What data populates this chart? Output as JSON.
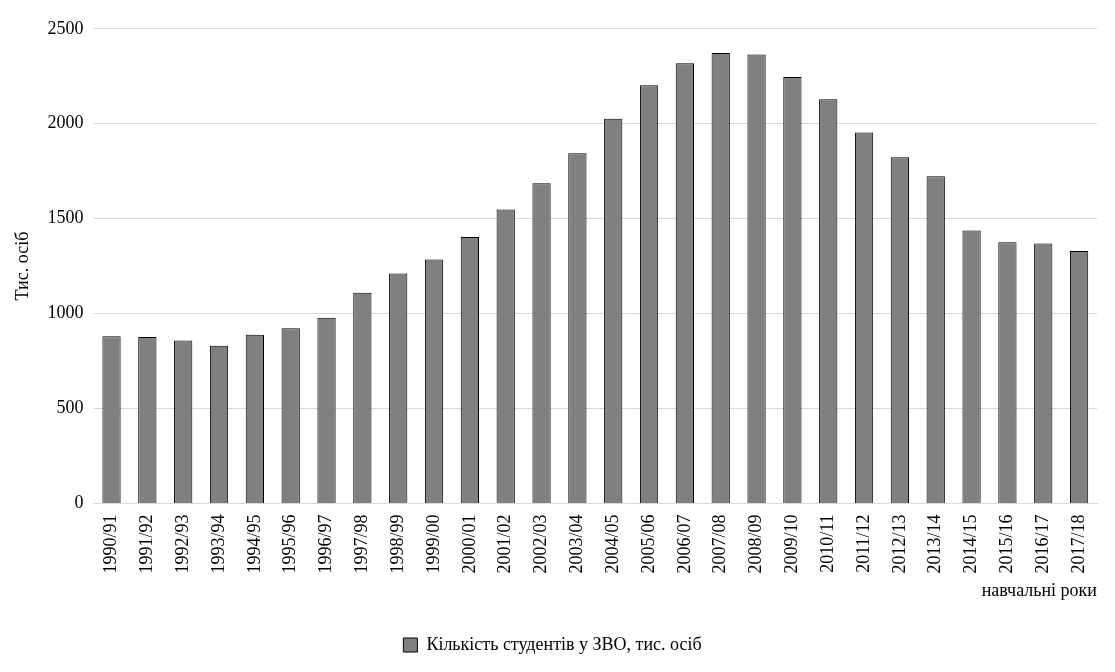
{
  "chart_data": {
    "type": "bar",
    "ylabel": "Тис. осіб",
    "xlabel": "навчальні роки",
    "categories": [
      "1990/91",
      "1991/92",
      "1992/93",
      "1993/94",
      "1994/95",
      "1995/96",
      "1996/97",
      "1997/98",
      "1998/99",
      "1999/00",
      "2000/01",
      "2001/02",
      "2002/03",
      "2003/04",
      "2004/05",
      "2005/06",
      "2006/07",
      "2007/08",
      "2008/09",
      "2009/10",
      "2010/11",
      "2011/12",
      "2012/13",
      "2013/14",
      "2014/15",
      "2015/16",
      "2016/17",
      "2017/18"
    ],
    "series": [
      {
        "name": "Кількість студентів у ЗВО, тис. осіб",
        "color": "#808080",
        "values": [
          881,
          876,
          858,
          830,
          889,
          922,
          978,
          1110,
          1211,
          1285,
          1403,
          1548,
          1687,
          1844,
          2026,
          2203,
          2318,
          2372,
          2364,
          2246,
          2129,
          1954,
          1824,
          1723,
          1438,
          1375,
          1369,
          1330
        ]
      }
    ],
    "ylim": [
      0,
      2500
    ],
    "yticks": [
      0,
      500,
      1000,
      1500,
      2000,
      2500
    ],
    "grid": "y",
    "legend": "bottom"
  }
}
